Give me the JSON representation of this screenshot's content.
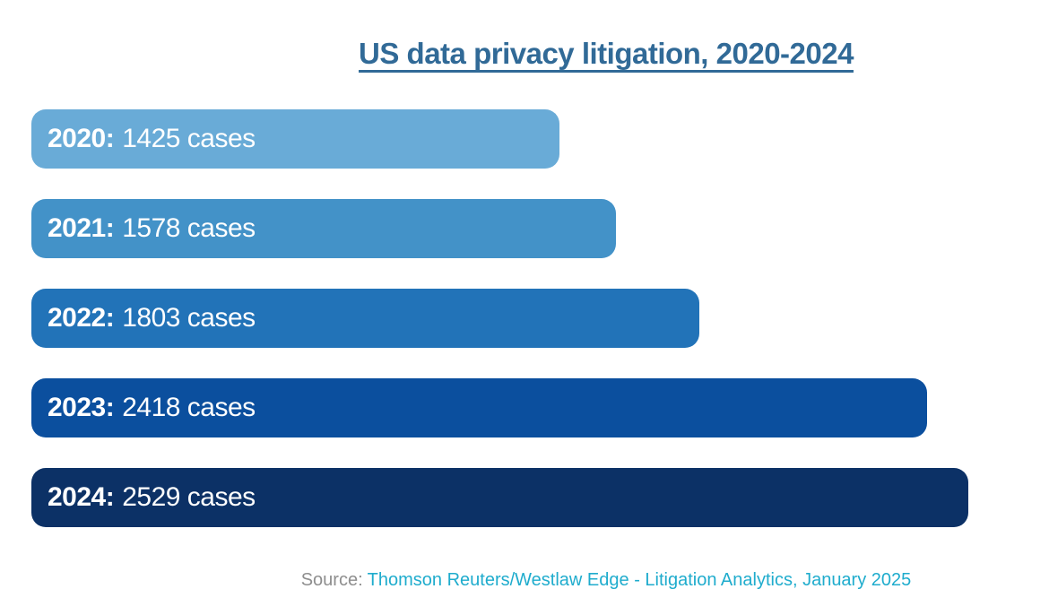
{
  "page": {
    "background_color": "#FFFFFF"
  },
  "header": {
    "title": "US data privacy litigation, 2020-2024",
    "title_color": "#316A97"
  },
  "footer": {
    "source_prefix": "Source:",
    "source_prefix_color": "#8E8E8E",
    "source_text": "Thomson Reuters/Westlaw Edge - Litigation Analytics, January 2025",
    "source_text_color": "#1FACCD"
  },
  "chart_data": {
    "type": "bar",
    "orientation": "horizontal",
    "title": "US data privacy litigation, 2020-2024",
    "categories": [
      "2020",
      "2021",
      "2022",
      "2023",
      "2024"
    ],
    "values": [
      1425,
      1578,
      1803,
      2418,
      2529
    ],
    "unit": "cases",
    "bar_colors": [
      "#69ABD7",
      "#4392C8",
      "#2273B8",
      "#0B4F9E",
      "#0C3166"
    ],
    "bar_label_text_color": "#FFFFFF",
    "labels_inside_bars": true,
    "xlim": [
      0,
      2529
    ],
    "grid": false,
    "legend": false,
    "axes_shown": false
  }
}
